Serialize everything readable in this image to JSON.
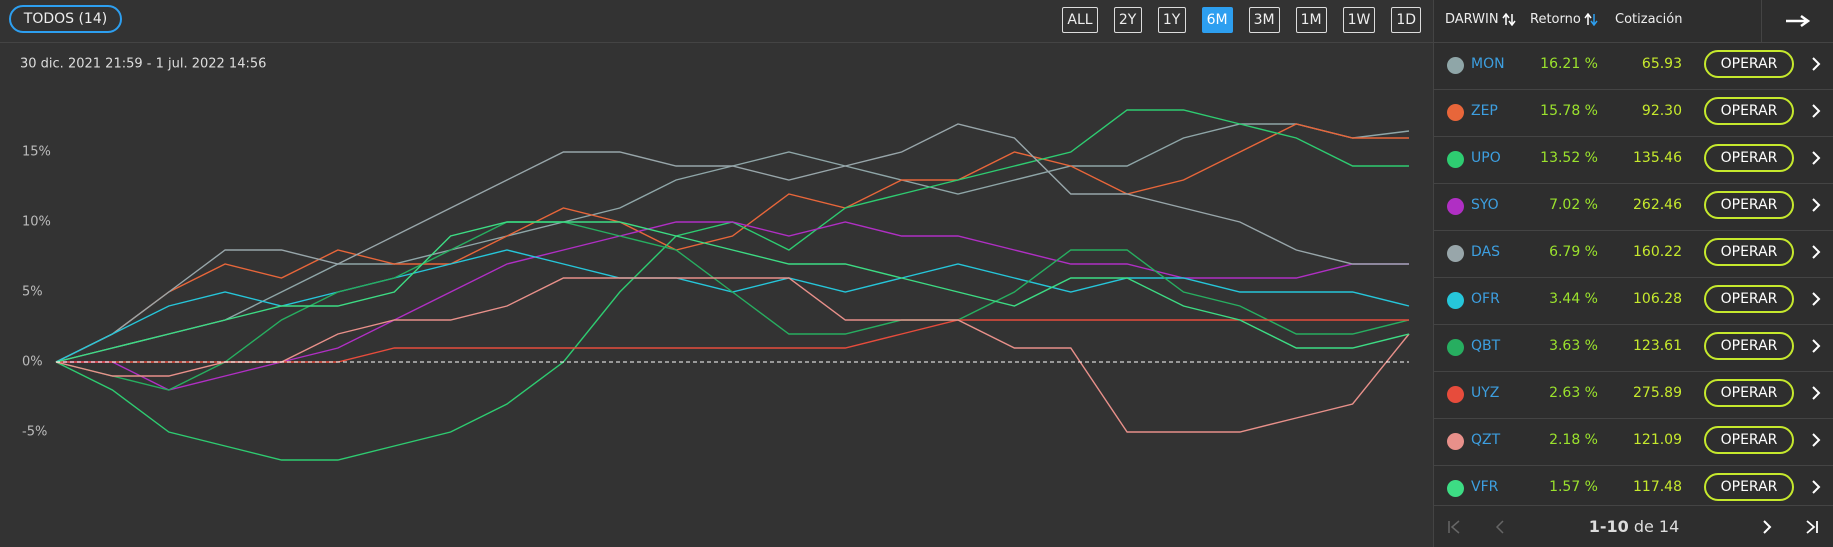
{
  "filter_button": "TODOS (14)",
  "periods": [
    "ALL",
    "2Y",
    "1Y",
    "6M",
    "3M",
    "1M",
    "1W",
    "1D"
  ],
  "active_period": "6M",
  "chart_data": {
    "type": "line",
    "subtitle": "30 dic. 2021 21:59 - 1 jul. 2022 14:56",
    "ylim": [
      -12,
      20
    ],
    "yticks": [
      {
        "value": -5,
        "label": "-5%"
      },
      {
        "value": 0,
        "label": "0%"
      },
      {
        "value": 5,
        "label": "5%"
      },
      {
        "value": 10,
        "label": "10%"
      },
      {
        "value": 15,
        "label": "15%"
      }
    ],
    "zero_line": true,
    "series": [
      {
        "name": "MON",
        "color": "#8fa6a8",
        "values": [
          0,
          1,
          2,
          3,
          5,
          7,
          7,
          8,
          9,
          10,
          11,
          13,
          14,
          15,
          14,
          13,
          12,
          13,
          14,
          14,
          16,
          17,
          17,
          16,
          16.5
        ]
      },
      {
        "name": "ZEP",
        "color": "#e8663a",
        "values": [
          0,
          2,
          5,
          7,
          6,
          8,
          7,
          7,
          9,
          11,
          10,
          8,
          9,
          12,
          11,
          13,
          13,
          15,
          14,
          12,
          13,
          15,
          17,
          16,
          16
        ]
      },
      {
        "name": "UPO",
        "color": "#2ecc71",
        "values": [
          0,
          -2,
          -5,
          -6,
          -7,
          -7,
          -6,
          -5,
          -3,
          0,
          5,
          9,
          10,
          8,
          11,
          12,
          13,
          14,
          15,
          18,
          18,
          17,
          16,
          14,
          14
        ]
      },
      {
        "name": "SYO",
        "color": "#b02fc4",
        "values": [
          0,
          0,
          -2,
          -1,
          0,
          1,
          3,
          5,
          7,
          8,
          9,
          10,
          10,
          9,
          10,
          9,
          9,
          8,
          7,
          7,
          6,
          6,
          6,
          7,
          7
        ]
      },
      {
        "name": "DAS",
        "color": "#98a6aa",
        "values": [
          0,
          2,
          5,
          8,
          8,
          7,
          9,
          11,
          13,
          15,
          15,
          14,
          14,
          13,
          14,
          15,
          17,
          16,
          12,
          12,
          11,
          10,
          8,
          7,
          7
        ]
      },
      {
        "name": "OFR",
        "color": "#26c6da",
        "values": [
          0,
          2,
          4,
          5,
          4,
          5,
          6,
          7,
          8,
          7,
          6,
          6,
          5,
          6,
          5,
          6,
          7,
          6,
          5,
          6,
          6,
          5,
          5,
          5,
          4
        ]
      },
      {
        "name": "QBT",
        "color": "#27ae60",
        "values": [
          0,
          -1,
          -2,
          0,
          3,
          5,
          6,
          8,
          10,
          10,
          9,
          8,
          5,
          2,
          2,
          3,
          3,
          5,
          8,
          8,
          5,
          4,
          2,
          2,
          3
        ]
      },
      {
        "name": "UYZ",
        "color": "#e74c3c",
        "values": [
          0,
          0,
          0,
          0,
          0,
          0,
          1,
          1,
          1,
          1,
          1,
          1,
          1,
          1,
          1,
          2,
          3,
          3,
          3,
          3,
          3,
          3,
          3,
          3,
          3
        ]
      },
      {
        "name": "QZT",
        "color": "#e8908a",
        "values": [
          0,
          -1,
          -1,
          0,
          0,
          2,
          3,
          3,
          4,
          6,
          6,
          6,
          6,
          6,
          3,
          3,
          3,
          1,
          1,
          -5,
          -5,
          -5,
          -4,
          -3,
          2
        ]
      },
      {
        "name": "VFR",
        "color": "#3ddc84",
        "values": [
          0,
          1,
          2,
          3,
          4,
          4,
          5,
          9,
          10,
          10,
          10,
          9,
          8,
          7,
          7,
          6,
          5,
          4,
          6,
          6,
          4,
          3,
          1,
          1,
          2
        ]
      }
    ]
  },
  "table": {
    "headers": [
      "DARWIN",
      "Retorno",
      "Cotización"
    ],
    "rows": [
      [
        "16.21 %",
        "65.93",
        "OPERAR"
      ],
      [
        "15.78 %",
        "92.30",
        "OPERAR"
      ],
      [
        "13.52 %",
        "135.46",
        "OPERAR"
      ],
      [
        "7.02 %",
        "262.46",
        "OPERAR"
      ],
      [
        "6.79 %",
        "160.22",
        "OPERAR"
      ],
      [
        "3.44 %",
        "106.28",
        "OPERAR"
      ],
      [
        "3.63 %",
        "123.61",
        "OPERAR"
      ],
      [
        "2.63 %",
        "275.89",
        "OPERAR"
      ],
      [
        "2.18 %",
        "121.09",
        "OPERAR"
      ],
      [
        "1.57 %",
        "117.48",
        "OPERAR"
      ]
    ]
  },
  "pagination": {
    "range": "1-10",
    "total": "de 14"
  }
}
